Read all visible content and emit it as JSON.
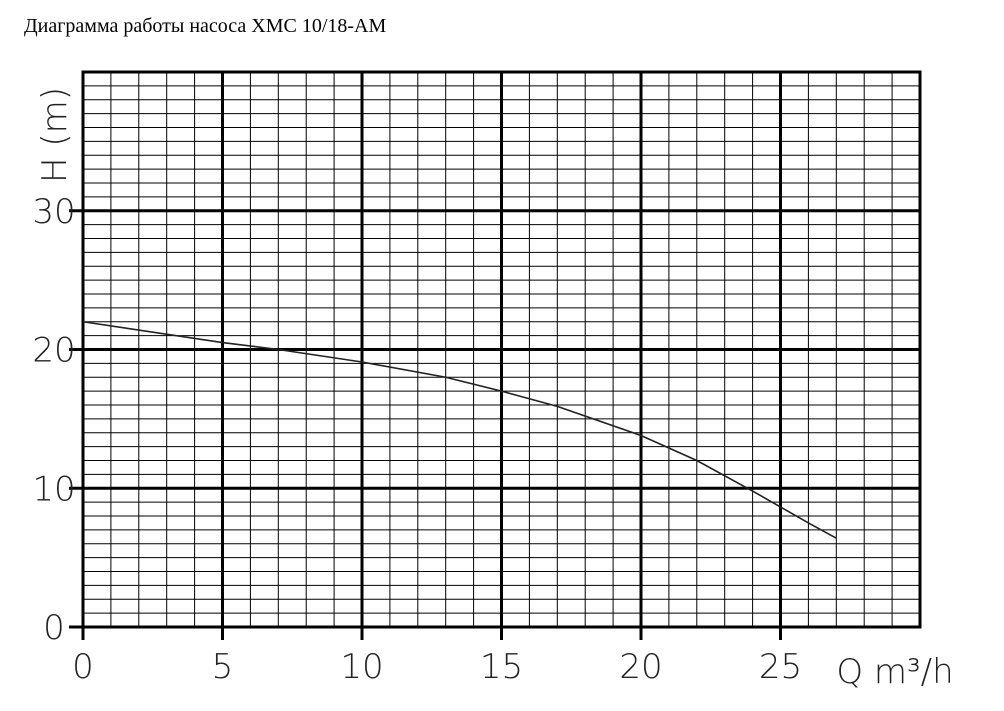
{
  "chart_data": {
    "type": "line",
    "title": "Диаграмма работы насоса XMC 10/18-AM",
    "x_label": "Q m³/h",
    "y_label": "H (m)",
    "x": [
      0,
      5,
      7,
      10,
      13,
      15,
      17,
      20,
      22,
      24,
      26,
      27
    ],
    "series": [
      {
        "name": "XMC 10/18-AM",
        "color": "#222222",
        "values": [
          22,
          20.5,
          20,
          19.1,
          18,
          17,
          15.9,
          13.8,
          12,
          9.8,
          7.5,
          6.4
        ]
      }
    ],
    "xlim": [
      0,
      30
    ],
    "ylim": [
      0,
      40
    ],
    "xticks": [
      0,
      5,
      10,
      15,
      20,
      25
    ],
    "yticks": [
      0,
      10,
      20,
      30
    ],
    "grid": true
  }
}
